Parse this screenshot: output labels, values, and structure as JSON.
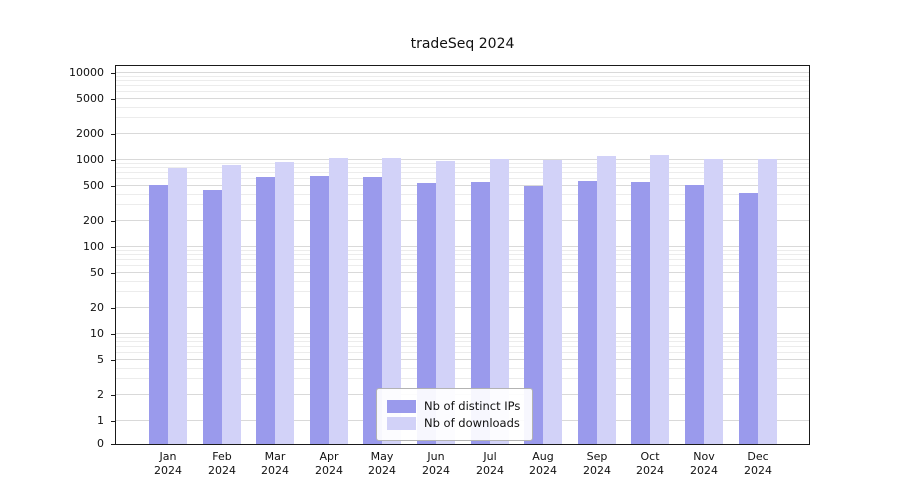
{
  "chart_data": {
    "type": "bar",
    "title": "tradeSeq 2024",
    "xlabel": "",
    "ylabel": "",
    "y_scale": "log",
    "ylim": [
      0,
      10000
    ],
    "grid": true,
    "legend_position": "bottom-center",
    "y_ticks": [
      10000,
      5000,
      2000,
      1000,
      500,
      200,
      100,
      50,
      20,
      10,
      5,
      2,
      1,
      0
    ],
    "categories": [
      "Jan",
      "Feb",
      "Mar",
      "Apr",
      "May",
      "Jun",
      "Jul",
      "Aug",
      "Sep",
      "Oct",
      "Nov",
      "Dec"
    ],
    "year": "2024",
    "series": [
      {
        "name": "Nb of distinct IPs",
        "color": "#9a9aec",
        "values": [
          520,
          450,
          640,
          660,
          640,
          540,
          560,
          500,
          580,
          560,
          510,
          420
        ]
      },
      {
        "name": "Nb of downloads",
        "color": "#d2d2f8",
        "values": [
          800,
          870,
          960,
          1050,
          1060,
          970,
          1030,
          1000,
          1100,
          1150,
          1030,
          1020
        ]
      }
    ]
  }
}
